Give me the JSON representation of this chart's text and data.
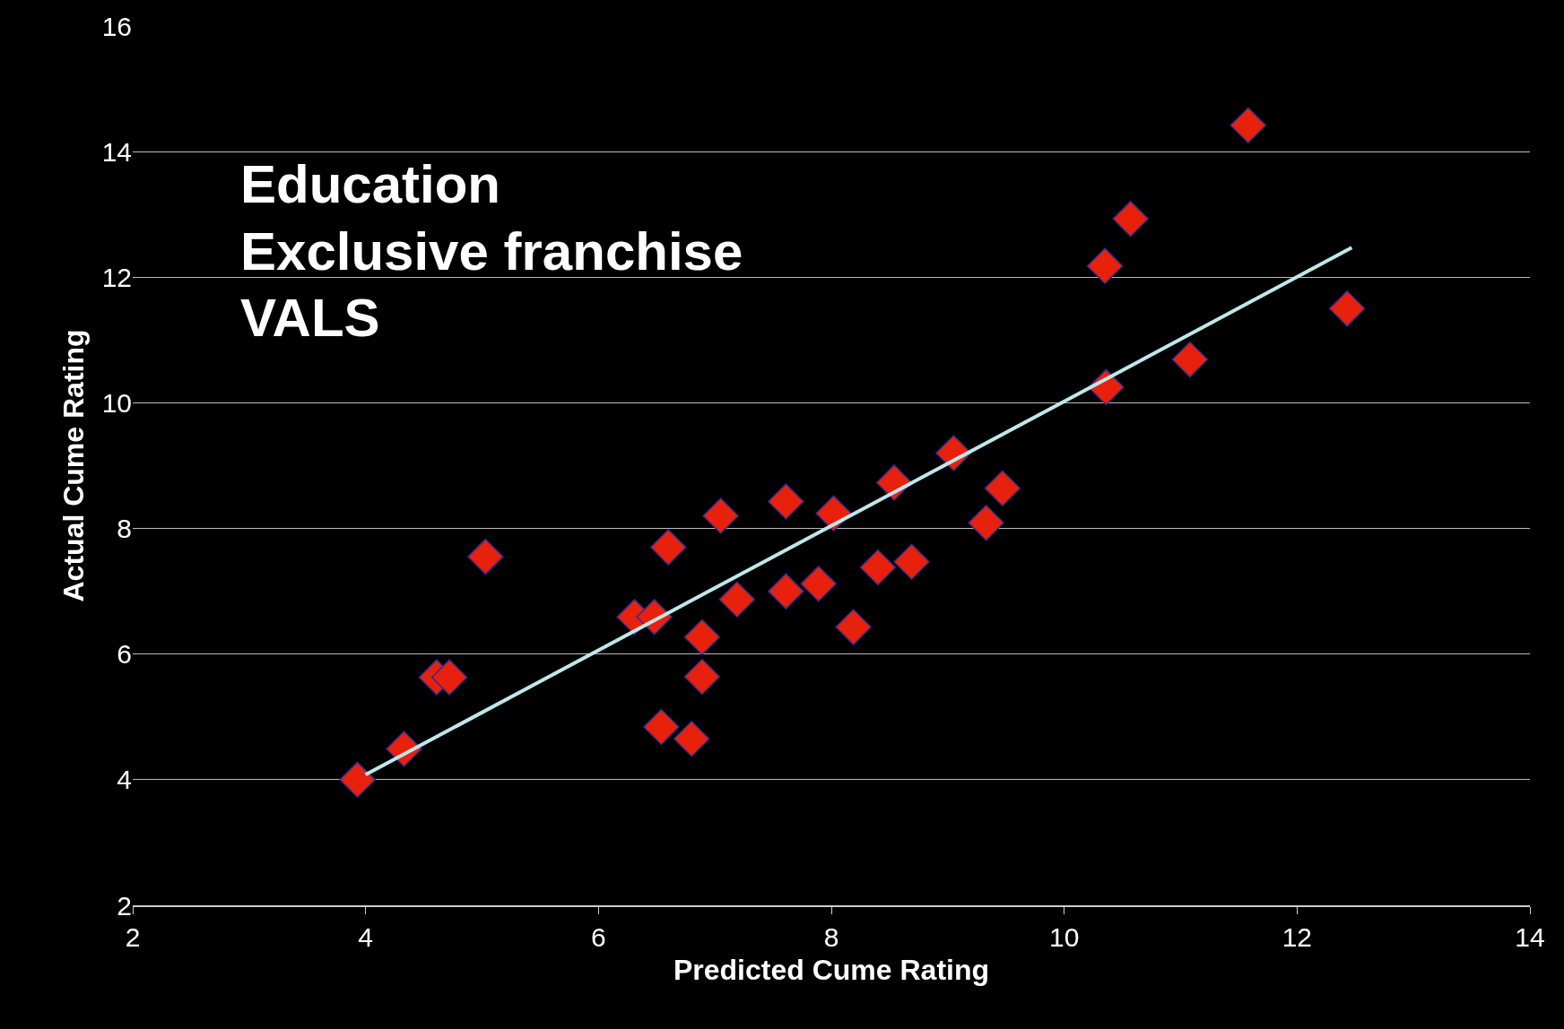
{
  "chart_data": {
    "type": "scatter",
    "xlabel": "Predicted Cume Rating",
    "ylabel": "Actual Cume Rating",
    "annotations": [
      "Education",
      "Exclusive franchise",
      "VALS"
    ],
    "xlim": [
      2,
      14
    ],
    "xticks": [
      2,
      4,
      6,
      8,
      10,
      12,
      14
    ],
    "ylim": [
      2,
      16
    ],
    "yticks": [
      2,
      4,
      6,
      8,
      10,
      12,
      14,
      16
    ],
    "grid": "y",
    "legend": false,
    "series": [
      {
        "color": "#e8210c",
        "marker": "diamond",
        "x": [
          3.93,
          4.33,
          4.61,
          4.72,
          5.03,
          6.31,
          6.48,
          6.54,
          6.6,
          6.8,
          6.89,
          6.89,
          7.05,
          7.19,
          7.61,
          7.61,
          7.89,
          8.02,
          8.19,
          8.4,
          8.54,
          8.69,
          9.05,
          9.33,
          9.47,
          10.36,
          10.35,
          10.57,
          11.08,
          11.58,
          12.43
        ],
        "values": [
          4.0,
          4.49,
          5.63,
          5.63,
          7.55,
          6.59,
          6.59,
          4.84,
          7.7,
          4.65,
          5.64,
          6.27,
          8.2,
          6.87,
          7.0,
          8.43,
          7.12,
          8.24,
          6.43,
          7.38,
          8.73,
          7.47,
          9.2,
          8.09,
          8.64,
          10.25,
          12.18,
          12.93,
          10.69,
          14.42,
          11.5
        ]
      },
      {
        "type": "line",
        "color": "#bfe8ec",
        "marker": "none",
        "line_style": "solid",
        "x": [
          4.0,
          12.47
        ],
        "values": [
          4.08,
          12.47
        ]
      }
    ]
  }
}
